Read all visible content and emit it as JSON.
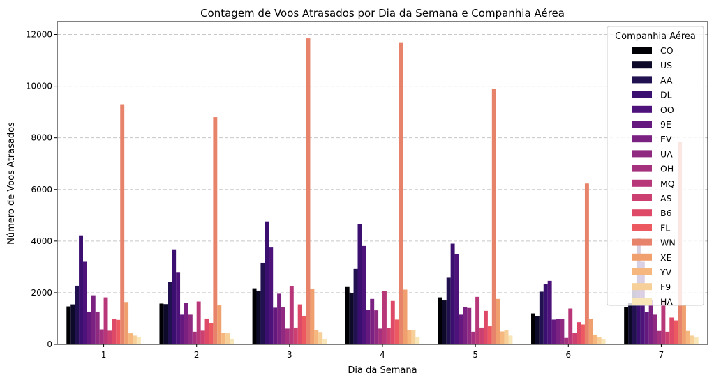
{
  "chart_data": {
    "type": "bar",
    "title": "Contagem de Voos Atrasados por Dia da Semana e Companhia Aérea",
    "xlabel": "Dia da Semana",
    "ylabel": "Número de Voos Atrasados",
    "ylim": [
      0,
      12500
    ],
    "yticks": [
      0,
      2000,
      4000,
      6000,
      8000,
      10000,
      12000
    ],
    "grid": "horizontal dashed",
    "legend_title": "Companhia Aérea",
    "legend_position": "top-right",
    "categories": [
      "1",
      "2",
      "3",
      "4",
      "5",
      "6",
      "7"
    ],
    "series": [
      {
        "name": "CO",
        "color": "#000004",
        "values": [
          1470,
          1580,
          2170,
          2220,
          1820,
          1200,
          1450
        ]
      },
      {
        "name": "US",
        "color": "#0d0a29",
        "values": [
          1550,
          1560,
          2080,
          1980,
          1700,
          1100,
          1600
        ]
      },
      {
        "name": "AA",
        "color": "#221150",
        "values": [
          2270,
          2420,
          3160,
          2920,
          2580,
          2040,
          2300
        ]
      },
      {
        "name": "DL",
        "color": "#3b0f70",
        "values": [
          4220,
          3680,
          4760,
          4650,
          3900,
          2340,
          4100
        ]
      },
      {
        "name": "OO",
        "color": "#4e137b",
        "values": [
          3200,
          2800,
          3750,
          3810,
          3500,
          2460,
          3200
        ]
      },
      {
        "name": "9E",
        "color": "#65197f",
        "values": [
          1270,
          1150,
          1420,
          1330,
          1150,
          960,
          1250
        ]
      },
      {
        "name": "EV",
        "color": "#7a2181",
        "values": [
          1900,
          1610,
          1960,
          1760,
          1440,
          990,
          1700
        ]
      },
      {
        "name": "UA",
        "color": "#902a81",
        "values": [
          1270,
          1150,
          1450,
          1320,
          1410,
          980,
          1150
        ]
      },
      {
        "name": "OH",
        "color": "#a5317e",
        "values": [
          580,
          490,
          610,
          610,
          490,
          250,
          520
        ]
      },
      {
        "name": "MQ",
        "color": "#b73779",
        "values": [
          1820,
          1660,
          2240,
          2060,
          1840,
          1390,
          1700
        ]
      },
      {
        "name": "AS",
        "color": "#cc3f71",
        "values": [
          530,
          530,
          650,
          640,
          650,
          450,
          490
        ]
      },
      {
        "name": "B6",
        "color": "#de4968",
        "values": [
          980,
          1000,
          1550,
          1680,
          1300,
          860,
          1040
        ]
      },
      {
        "name": "FL",
        "color": "#ec5961",
        "values": [
          950,
          820,
          1100,
          960,
          700,
          770,
          930
        ]
      },
      {
        "name": "WN",
        "color": "#e8836b",
        "values": [
          9300,
          8800,
          11850,
          11700,
          9900,
          6230,
          7850
        ]
      },
      {
        "name": "XE",
        "color": "#f0a06f",
        "values": [
          1640,
          1510,
          2140,
          2120,
          1760,
          1000,
          1500
        ]
      },
      {
        "name": "YV",
        "color": "#f5b77e",
        "values": [
          430,
          440,
          550,
          540,
          500,
          380,
          520
        ]
      },
      {
        "name": "F9",
        "color": "#f7cf98",
        "values": [
          340,
          430,
          480,
          540,
          550,
          270,
          340
        ]
      },
      {
        "name": "HA",
        "color": "#f8e5b8",
        "values": [
          280,
          210,
          210,
          280,
          340,
          200,
          270
        ]
      }
    ]
  }
}
